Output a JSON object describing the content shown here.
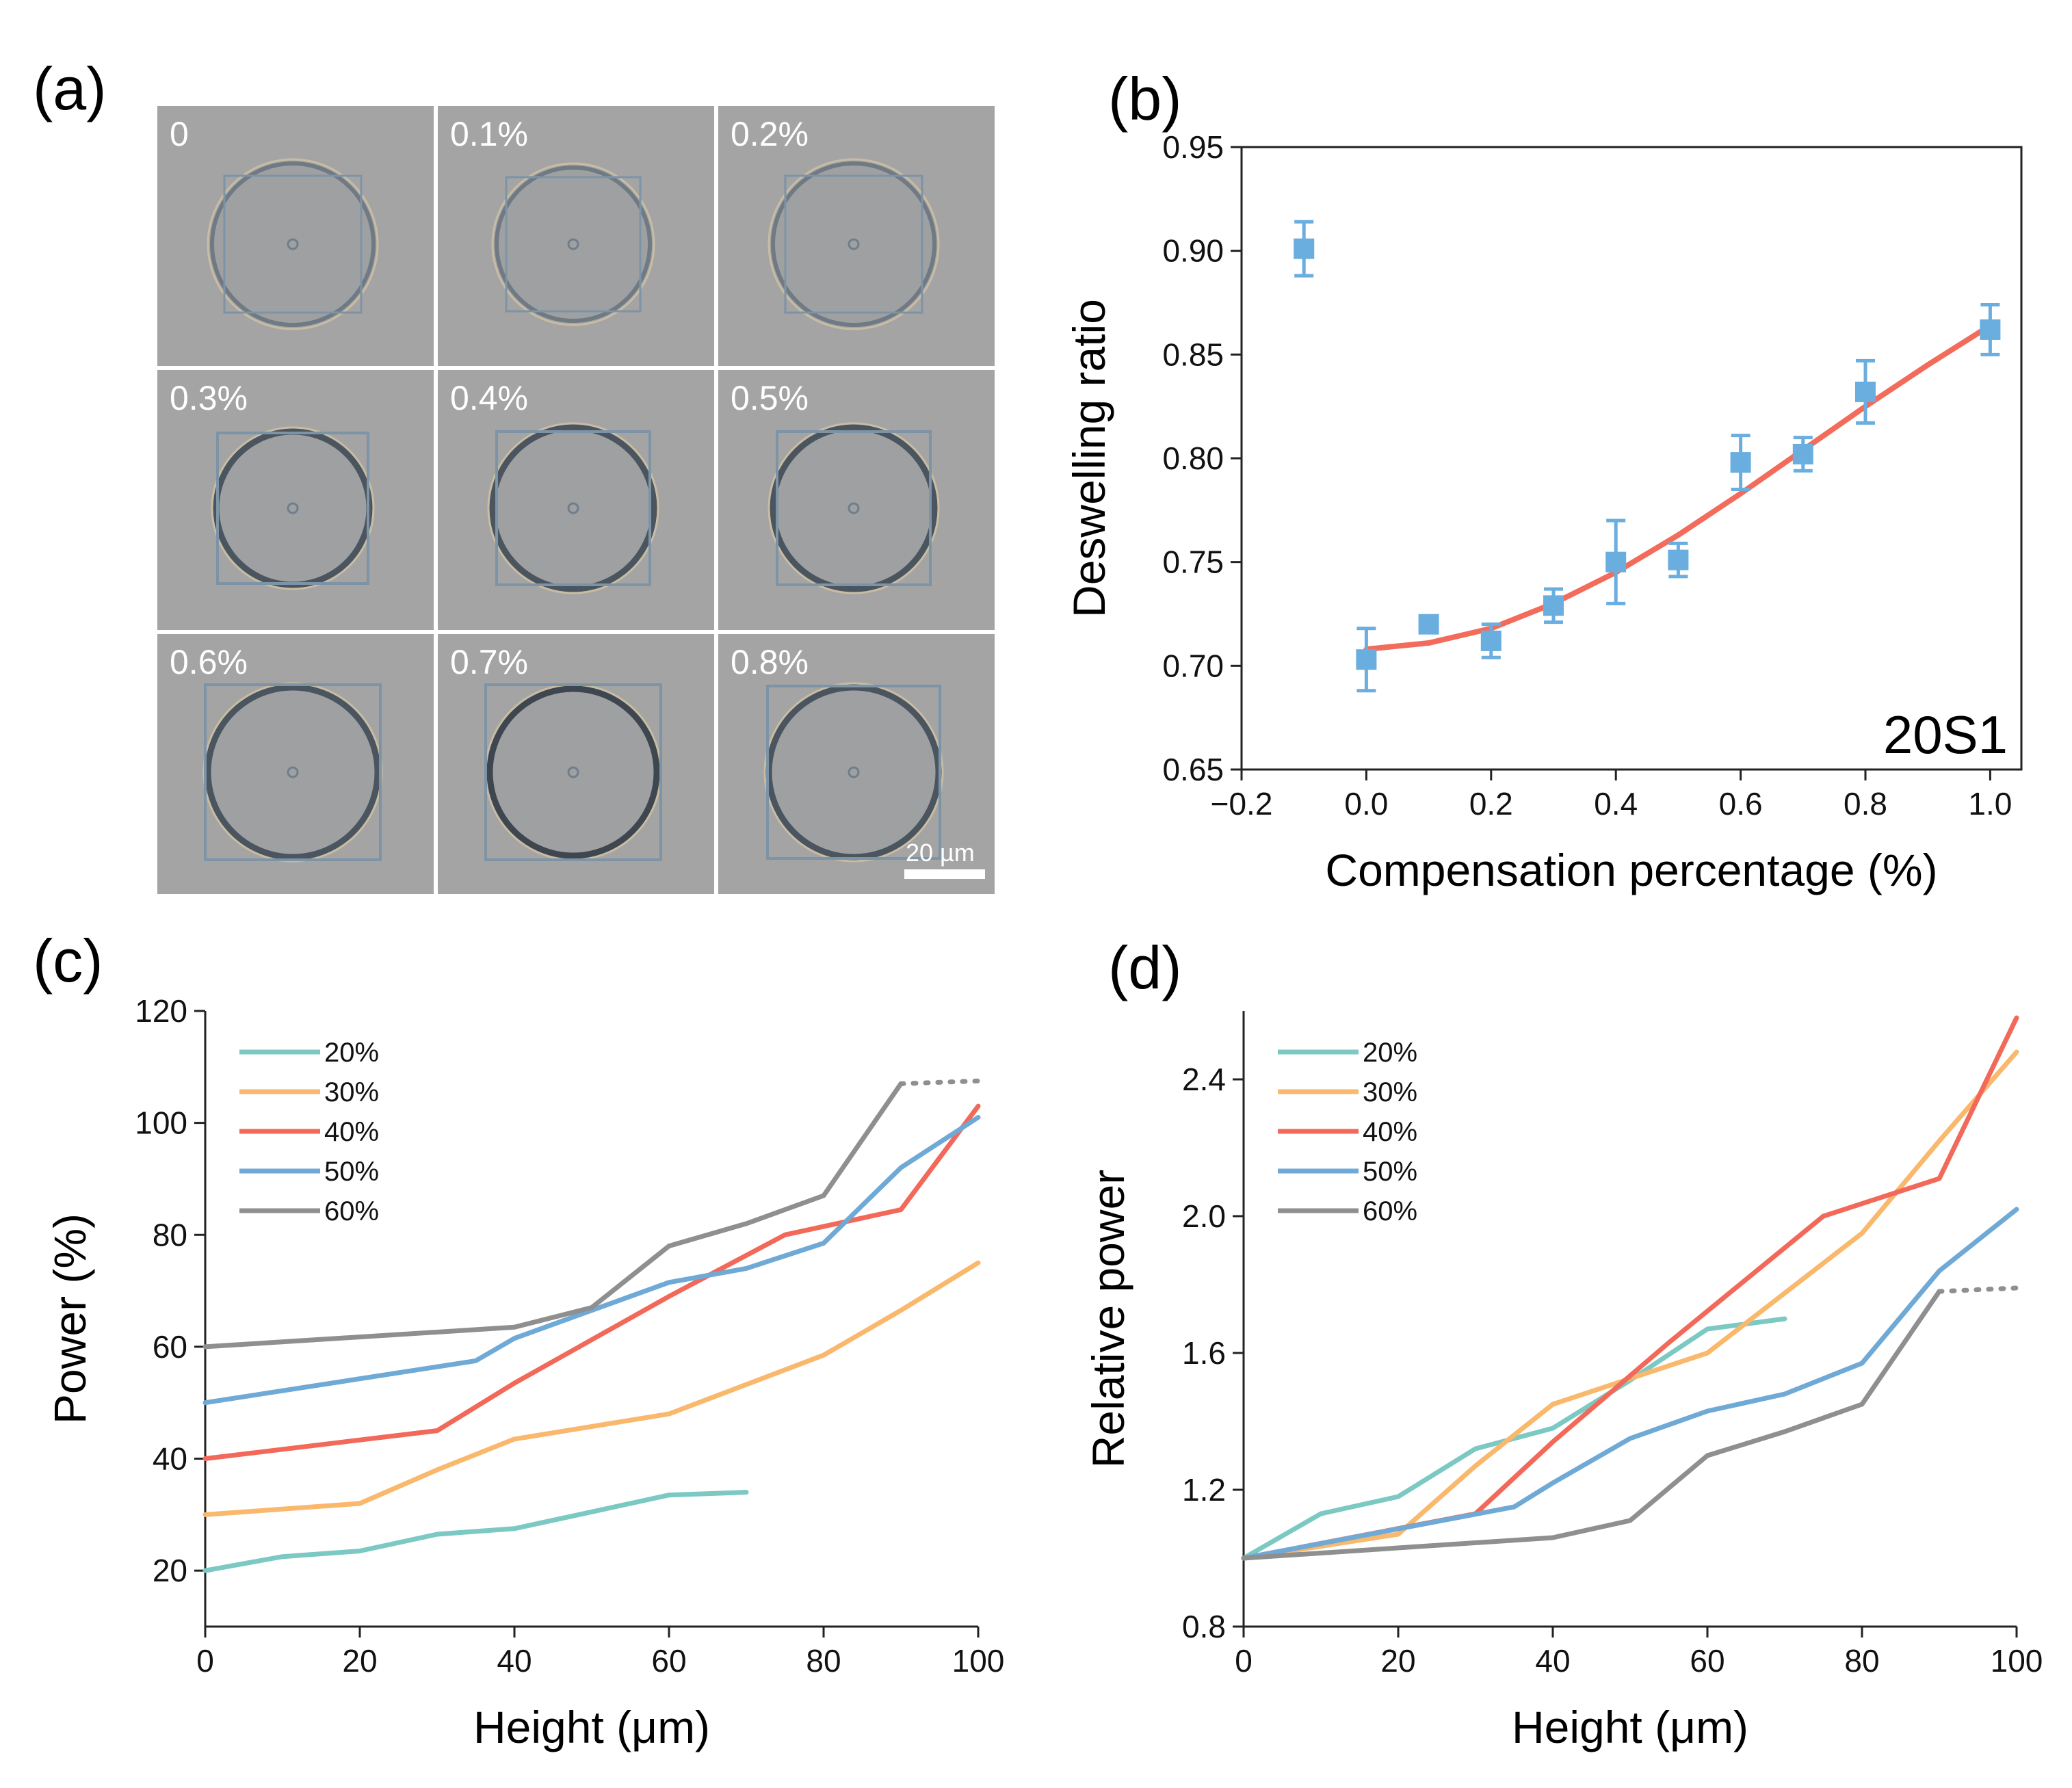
{
  "panels": {
    "a": {
      "label": "(a)",
      "scale_bar": "20 µm",
      "cells": [
        "0",
        "0.1%",
        "0.2%",
        "0.3%",
        "0.4%",
        "0.5%",
        "0.6%",
        "0.7%",
        "0.8%"
      ]
    },
    "b": {
      "label": "(b)"
    },
    "c": {
      "label": "(c)"
    },
    "d": {
      "label": "(d)"
    }
  },
  "colors": {
    "s20": "#7cc9c3",
    "s30": "#f9b86c",
    "s40": "#f2695a",
    "s50": "#6fa9d6",
    "s60": "#8f8f8f",
    "fit": "#f26b5b",
    "marker": "#6aaee0"
  },
  "chart_data": [
    {
      "id": "b",
      "type": "scatter",
      "title": "",
      "xlabel": "Compensation percentage (%)",
      "ylabel": "Deswelling ratio",
      "xlim": [
        -0.2,
        1.05
      ],
      "ylim": [
        0.65,
        0.95
      ],
      "xticks": [
        "−0.2",
        "0.0",
        "0.2",
        "0.4",
        "0.6",
        "0.8",
        "1.0"
      ],
      "yticks": [
        "0.65",
        "0.70",
        "0.75",
        "0.80",
        "0.85",
        "0.90",
        "0.95"
      ],
      "annotation": "20S1",
      "points": [
        {
          "x": -0.1,
          "y": 0.901,
          "err": 0.013
        },
        {
          "x": 0.0,
          "y": 0.703,
          "err": 0.015
        },
        {
          "x": 0.1,
          "y": 0.72,
          "err": 0.004
        },
        {
          "x": 0.2,
          "y": 0.712,
          "err": 0.008
        },
        {
          "x": 0.3,
          "y": 0.729,
          "err": 0.008
        },
        {
          "x": 0.4,
          "y": 0.75,
          "err": 0.02
        },
        {
          "x": 0.5,
          "y": 0.751,
          "err": 0.008
        },
        {
          "x": 0.6,
          "y": 0.798,
          "err": 0.013
        },
        {
          "x": 0.7,
          "y": 0.802,
          "err": 0.008
        },
        {
          "x": 0.8,
          "y": 0.832,
          "err": 0.015
        },
        {
          "x": 1.0,
          "y": 0.862,
          "err": 0.012
        }
      ],
      "fit": {
        "x": [
          0.0,
          0.1,
          0.2,
          0.3,
          0.4,
          0.5,
          0.6,
          0.7,
          0.8,
          0.9,
          1.0
        ],
        "y": [
          0.708,
          0.711,
          0.718,
          0.73,
          0.745,
          0.763,
          0.783,
          0.804,
          0.825,
          0.845,
          0.864
        ]
      }
    },
    {
      "id": "c",
      "type": "line",
      "xlabel": "Height (μm)",
      "ylabel": "Power (%)",
      "xlim": [
        0,
        100
      ],
      "ylim": [
        10,
        120
      ],
      "xticks": [
        "0",
        "20",
        "40",
        "60",
        "80",
        "100"
      ],
      "yticks": [
        "20",
        "40",
        "60",
        "80",
        "100",
        "120"
      ],
      "series": [
        {
          "name": "20%",
          "x": [
            0,
            10,
            20,
            30,
            40,
            50,
            60,
            70
          ],
          "y": [
            20,
            22.5,
            23.5,
            26.5,
            27.5,
            30.5,
            33.5,
            34
          ]
        },
        {
          "name": "30%",
          "x": [
            0,
            20,
            30,
            40,
            60,
            80,
            90,
            100
          ],
          "y": [
            30,
            32,
            38,
            43.5,
            48,
            58.5,
            66.5,
            75
          ]
        },
        {
          "name": "40%",
          "x": [
            0,
            30,
            40,
            60,
            75,
            90,
            100
          ],
          "y": [
            40,
            45,
            53.5,
            69,
            80,
            84.5,
            103
          ]
        },
        {
          "name": "50%",
          "x": [
            0,
            35,
            40,
            60,
            70,
            80,
            90,
            100
          ],
          "y": [
            50,
            57.5,
            61.5,
            71.5,
            74,
            78.5,
            92,
            101
          ]
        },
        {
          "name": "60%",
          "x": [
            0,
            40,
            50,
            60,
            70,
            80,
            90
          ],
          "y": [
            60,
            63.5,
            67,
            78,
            82,
            87,
            107
          ]
        }
      ],
      "dotted": {
        "series": "60%",
        "x": [
          90,
          100
        ],
        "y": [
          107,
          107.5
        ]
      }
    },
    {
      "id": "d",
      "type": "line",
      "xlabel": "Height (μm)",
      "ylabel": "Relative power",
      "xlim": [
        0,
        100
      ],
      "ylim": [
        0.8,
        2.6
      ],
      "xticks": [
        "0",
        "20",
        "40",
        "60",
        "80",
        "100"
      ],
      "yticks": [
        "0.8",
        "1.2",
        "1.6",
        "2.0",
        "2.4"
      ],
      "series": [
        {
          "name": "20%",
          "x": [
            0,
            10,
            20,
            30,
            40,
            50,
            60,
            70
          ],
          "y": [
            1.0,
            1.13,
            1.18,
            1.32,
            1.38,
            1.52,
            1.67,
            1.7
          ]
        },
        {
          "name": "30%",
          "x": [
            0,
            20,
            30,
            40,
            60,
            80,
            90,
            100
          ],
          "y": [
            1.0,
            1.07,
            1.27,
            1.45,
            1.6,
            1.95,
            2.22,
            2.48
          ]
        },
        {
          "name": "40%",
          "x": [
            0,
            30,
            40,
            55,
            75,
            90,
            100
          ],
          "y": [
            1.0,
            1.13,
            1.34,
            1.63,
            2.0,
            2.11,
            2.58
          ]
        },
        {
          "name": "50%",
          "x": [
            0,
            35,
            40,
            50,
            60,
            70,
            80,
            90,
            100
          ],
          "y": [
            1.0,
            1.15,
            1.22,
            1.35,
            1.43,
            1.48,
            1.57,
            1.84,
            2.02
          ]
        },
        {
          "name": "60%",
          "x": [
            0,
            40,
            50,
            60,
            70,
            80,
            90
          ],
          "y": [
            1.0,
            1.06,
            1.11,
            1.3,
            1.37,
            1.45,
            1.78
          ]
        }
      ],
      "dotted": {
        "series": "60%",
        "x": [
          90,
          100
        ],
        "y": [
          1.78,
          1.79
        ]
      }
    }
  ]
}
